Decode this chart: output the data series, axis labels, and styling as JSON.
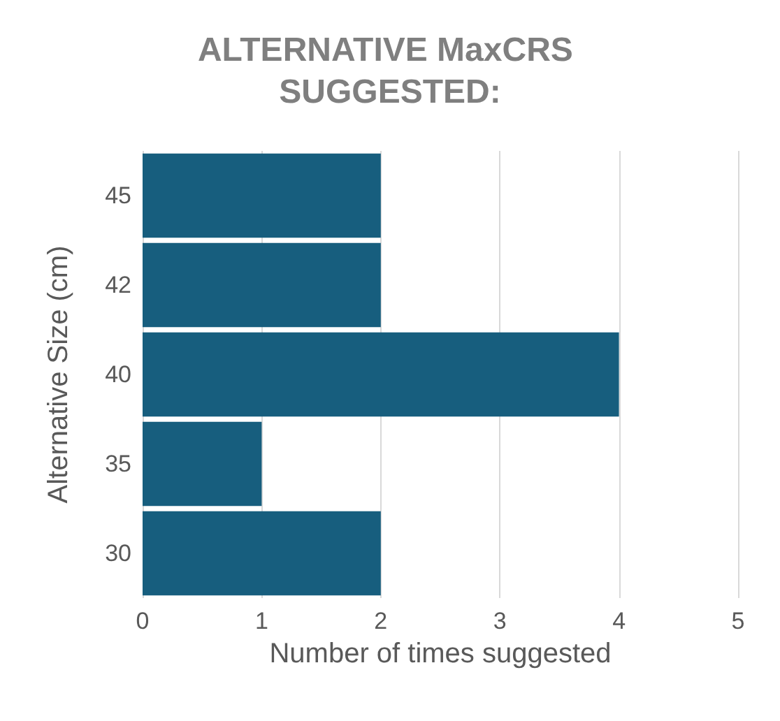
{
  "chart_data": {
    "type": "bar",
    "orientation": "horizontal",
    "title": "ALTERNATIVE MaxCRS SUGGESTED:",
    "xlabel": "Number of times suggested",
    "ylabel": "Alternative Size (cm)",
    "categories": [
      "45",
      "42",
      "40",
      "35",
      "30"
    ],
    "series": [
      {
        "color": "#175e7e",
        "values": [
          2,
          2,
          4,
          1,
          2
        ]
      }
    ],
    "xlim": [
      0,
      5
    ],
    "xticks": [
      0,
      1,
      2,
      3,
      4,
      5
    ],
    "grid": "x"
  }
}
